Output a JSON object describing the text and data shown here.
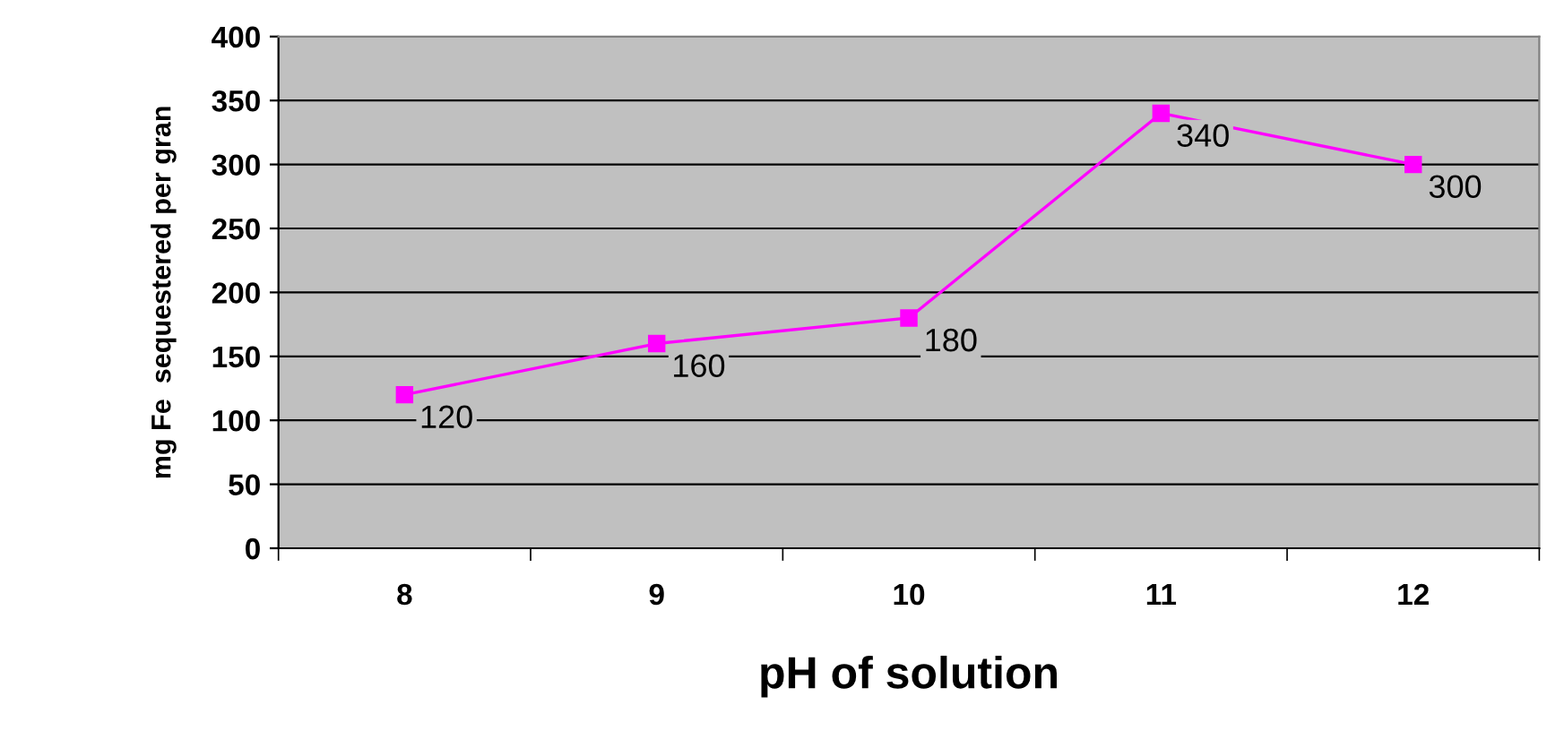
{
  "chart_data": {
    "type": "line",
    "xlabel": "pH of solution",
    "ylabel": "mg Fe  sequestered per gran",
    "categories": [
      "8",
      "9",
      "10",
      "11",
      "12"
    ],
    "series": [
      {
        "color": "#ff00ff",
        "values": [
          120,
          160,
          180,
          340,
          300
        ]
      }
    ],
    "ylim": [
      0,
      400
    ],
    "yticks": [
      0,
      50,
      100,
      150,
      200,
      250,
      300,
      350,
      400
    ],
    "grid": "y",
    "marker": "square",
    "line_style": "solid",
    "data_labels": true
  }
}
